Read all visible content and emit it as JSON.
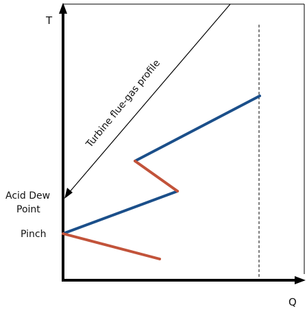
{
  "axes": {
    "y_label": "T",
    "x_label": "Q"
  },
  "annotations": {
    "flue_gas_label": "Turbine flue-gas profile",
    "acid_dew_line1": "Acid Dew",
    "acid_dew_line2": "Point",
    "pinch_label": "Pinch"
  },
  "colors": {
    "hot_stream": "#1b4f8a",
    "cold_stream": "#c2533a",
    "axis": "#000000"
  }
}
